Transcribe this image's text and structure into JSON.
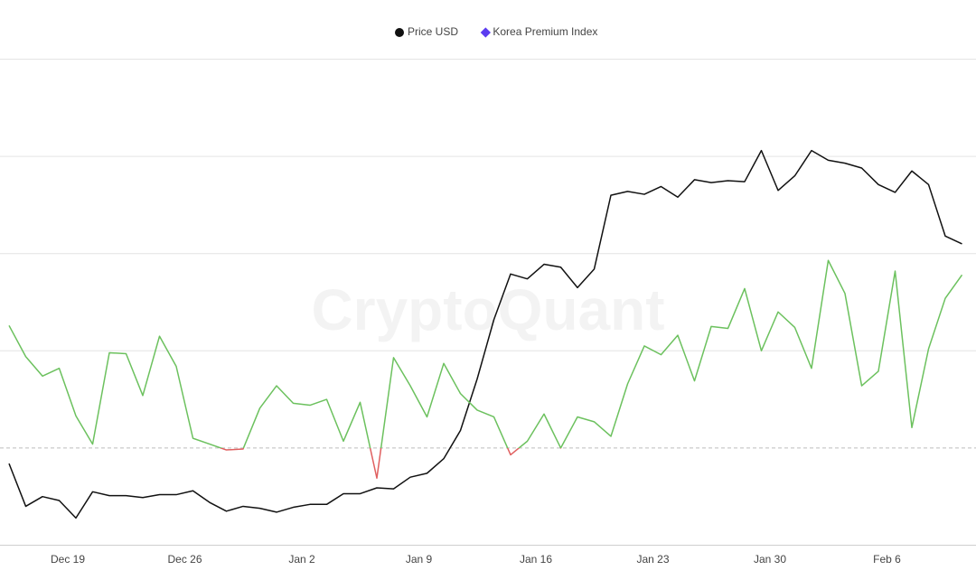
{
  "chart_data": {
    "type": "line",
    "watermark": "CryptoQuant",
    "categories": [
      null,
      null,
      null,
      null,
      "Dec 19",
      null,
      null,
      null,
      null,
      null,
      null,
      "Dec 26",
      null,
      null,
      null,
      null,
      null,
      null,
      "Jan 2",
      null,
      null,
      null,
      null,
      null,
      null,
      "Jan 9",
      null,
      null,
      null,
      null,
      null,
      null,
      "Jan 16",
      null,
      null,
      null,
      null,
      null,
      null,
      "Jan 23",
      null,
      null,
      null,
      null,
      null,
      null,
      "Jan 30",
      null,
      null,
      null,
      null,
      null,
      null,
      "Feb 6",
      null,
      null,
      null,
      null
    ],
    "series": [
      {
        "name": "Price USD",
        "color": "#111111",
        "line_color": "#111111",
        "marker": "circle",
        "axis": "y2",
        "values": [
          -0.16,
          -0.6,
          -0.5,
          -0.54,
          -0.72,
          -0.45,
          -0.49,
          -0.49,
          -0.51,
          -0.48,
          -0.48,
          -0.44,
          -0.56,
          -0.65,
          -0.6,
          -0.62,
          -0.66,
          -0.61,
          -0.58,
          -0.58,
          -0.47,
          -0.47,
          -0.41,
          -0.42,
          -0.3,
          -0.26,
          -0.11,
          0.18,
          0.71,
          1.32,
          1.79,
          1.74,
          1.89,
          1.86,
          1.65,
          1.84,
          2.6,
          2.64,
          2.61,
          2.69,
          2.58,
          2.76,
          2.73,
          2.75,
          2.74,
          3.06,
          2.65,
          2.8,
          3.06,
          2.96,
          2.93,
          2.88,
          2.71,
          2.63,
          2.85,
          2.71,
          2.18,
          2.1
        ]
      },
      {
        "name": "Korea Premium Index",
        "color": "#5b3cf0",
        "line_color": "#6cc15e",
        "negative_color": "#e06060",
        "marker": "diamond",
        "values": [
          1.26,
          0.94,
          0.74,
          0.82,
          0.33,
          0.04,
          0.98,
          0.97,
          0.54,
          1.15,
          0.84,
          0.1,
          0.04,
          -0.02,
          -0.01,
          0.41,
          0.64,
          0.46,
          0.44,
          0.5,
          0.07,
          0.47,
          -0.31,
          0.93,
          0.64,
          0.32,
          0.87,
          0.56,
          0.39,
          0.32,
          -0.07,
          0.07,
          0.35,
          0.0,
          0.32,
          0.27,
          0.12,
          0.66,
          1.05,
          0.96,
          1.16,
          0.69,
          1.25,
          1.23,
          1.64,
          1.0,
          1.4,
          1.24,
          0.82,
          1.93,
          1.59,
          0.64,
          0.79,
          1.82,
          0.21,
          1.02,
          1.54,
          1.78
        ]
      }
    ],
    "ylim": [
      -1,
      4
    ],
    "yticks": [
      -1,
      0,
      1,
      2,
      3,
      4
    ],
    "y2lim": [
      -1,
      4
    ],
    "tick_labels": false,
    "grid": true,
    "zero_line": "dashed",
    "legend": "top"
  }
}
